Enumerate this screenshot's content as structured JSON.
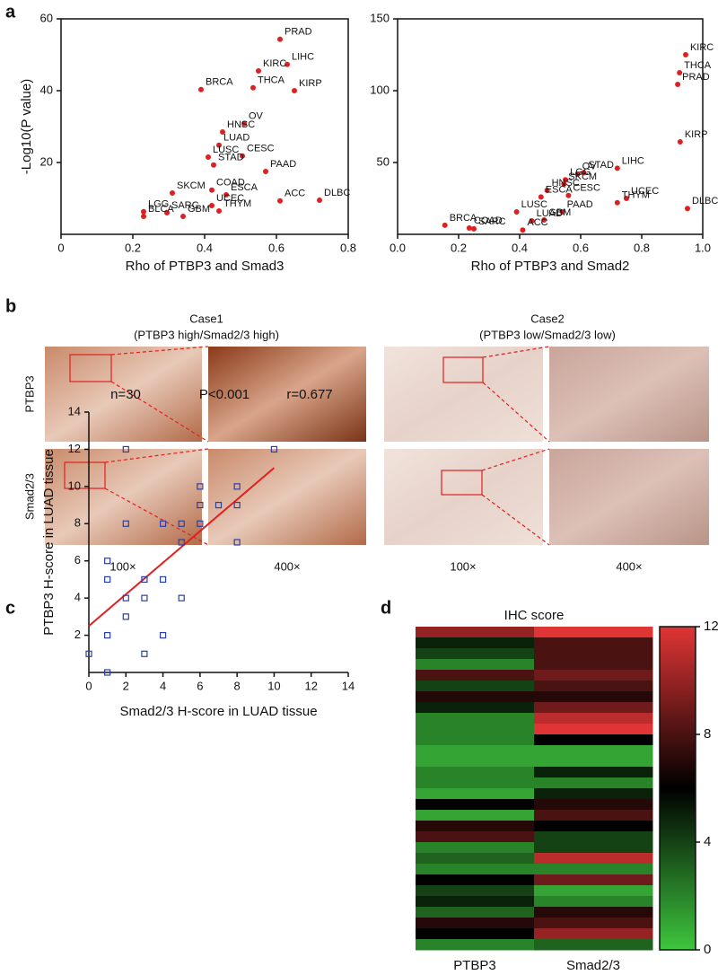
{
  "panel_labels": [
    "a",
    "b",
    "c",
    "d"
  ],
  "ihc_panel": {
    "row_labels": [
      "PTBP3",
      "Smad2/3"
    ],
    "cases": [
      {
        "title": "Case1",
        "subtitle": "(PTBP3 high/Smad2/3 high)",
        "magnifications": [
          "100×",
          "400×"
        ]
      },
      {
        "title": "Case2",
        "subtitle": "(PTBP3 low/Smad2/3 low)",
        "magnifications": [
          "100×",
          "400×"
        ]
      }
    ]
  },
  "chart_data": [
    {
      "type": "scatter",
      "xlabel": "Rho of  PTBP3 and Smad3",
      "ylabel": "-Log10(P value)",
      "color": "#e02020",
      "xlim": [
        0,
        0.8
      ],
      "xticks": [
        0,
        0.2,
        0.4,
        0.6,
        0.8
      ],
      "ylim": [
        0,
        60
      ],
      "yticks": [
        20,
        40,
        60
      ],
      "point_labels": [
        "PRAD",
        "LIHC",
        "KIRC",
        "KIRP",
        "BRCA",
        "THCA",
        "OV",
        "HNSC",
        "LUAD",
        "CESC",
        "LUSC",
        "STAD",
        "PAAD",
        "SKCM",
        "COAD",
        "ESCA",
        "LGG",
        "SARC",
        "UCEC",
        "ACC",
        "DLBC",
        "BLCA",
        "GBM",
        "THYM"
      ],
      "x": [
        0.61,
        0.63,
        0.55,
        0.65,
        0.39,
        0.535,
        0.51,
        0.45,
        0.44,
        0.505,
        0.41,
        0.425,
        0.57,
        0.31,
        0.42,
        0.46,
        0.23,
        0.295,
        0.42,
        0.61,
        0.72,
        0.23,
        0.34,
        0.44
      ],
      "values": [
        54.3,
        47.3,
        45.5,
        40,
        40.3,
        40.8,
        30.8,
        28.5,
        24.8,
        21.8,
        21.5,
        19.3,
        17.5,
        11.5,
        12.3,
        11,
        6.3,
        6,
        8,
        9.3,
        9.5,
        5,
        5,
        6.5
      ]
    },
    {
      "type": "scatter",
      "xlabel": "Rho of  PTBP3 and Smad2",
      "color": "#e02020",
      "xlim": [
        0,
        1
      ],
      "xticks": [
        {
          "value": 0,
          "label": "0.0"
        },
        0.2,
        0.4,
        0.6,
        0.8,
        {
          "value": 1,
          "label": "1.0"
        }
      ],
      "ylim": [
        0,
        150
      ],
      "yticks": [
        50,
        100,
        150
      ],
      "point_labels": [
        "KIRC",
        "THCA",
        "PRAD",
        "KIRP",
        "LIHC",
        "OV",
        "STAD",
        "LGG",
        "SKCM",
        "HNSC",
        "CESC",
        "UCEC",
        "THYM",
        "DLBC",
        "ESCA",
        "PAAD",
        "LUSC",
        "LUAD",
        "GBM",
        "ACC",
        "SARC",
        "COAD",
        "BRCA"
      ],
      "x": [
        0.944,
        0.924,
        0.918,
        0.926,
        0.72,
        0.59,
        0.61,
        0.55,
        0.545,
        0.49,
        0.56,
        0.75,
        0.72,
        0.95,
        0.47,
        0.54,
        0.39,
        0.44,
        0.48,
        0.41,
        0.25,
        0.235,
        0.155
      ],
      "values": [
        125,
        112.5,
        104.4,
        64.4,
        46,
        42,
        43,
        38,
        35,
        30.6,
        27,
        25,
        22,
        18,
        26,
        15.6,
        15.6,
        9.4,
        10,
        3,
        3.8,
        4.4,
        6.3
      ]
    },
    {
      "type": "scatter",
      "xlabel": "Smad2/3 H-score in LUAD tissue",
      "ylabel": "PTBP3 H-score in LUAD tissue",
      "annotations": [
        "n=30",
        "P<0.001",
        "r=0.677"
      ],
      "color": "#2a3fa8",
      "xlim": [
        0,
        14
      ],
      "xticks": [
        0,
        2,
        4,
        6,
        8,
        10,
        12,
        14
      ],
      "ylim": [
        0,
        14
      ],
      "yticks": [
        2,
        4,
        6,
        8,
        10,
        12,
        14
      ],
      "x": [
        0,
        1,
        1,
        1,
        1,
        2,
        2,
        2,
        2,
        3,
        3,
        3,
        4,
        4,
        4,
        5,
        5,
        5,
        6,
        6,
        6,
        7,
        8,
        8,
        8,
        10
      ],
      "values": [
        1,
        0,
        2,
        5,
        6,
        12,
        8,
        4,
        3,
        5,
        4,
        1,
        8,
        5,
        2,
        8,
        7,
        4,
        10,
        9,
        8,
        9,
        10,
        9,
        7,
        12
      ],
      "fit": {
        "color": "#e02020",
        "x": [
          0,
          10
        ],
        "values": [
          2.5,
          11
        ]
      }
    },
    {
      "type": "heatmap",
      "title": "IHC score",
      "clim": [
        0,
        12
      ],
      "cticks": [
        0,
        4,
        8,
        12
      ],
      "colors": [
        "#3ec63e",
        "#000000",
        "#e03535"
      ],
      "series": [
        {
          "name": "PTBP3",
          "values": [
            10,
            5,
            4,
            2,
            8,
            4,
            7,
            5,
            2,
            2,
            2,
            1,
            1,
            2,
            2,
            1,
            6,
            1,
            7,
            8,
            2,
            3,
            2,
            6,
            4,
            5,
            3,
            7,
            6,
            2
          ]
        },
        {
          "name": "Smad2/3",
          "values": [
            12,
            8,
            8,
            8,
            9,
            8,
            7,
            9,
            11,
            12,
            6,
            1,
            1,
            5,
            2,
            5,
            7,
            8,
            6,
            4,
            4,
            11,
            2,
            9,
            1,
            2,
            7,
            8,
            10,
            3
          ]
        }
      ]
    }
  ]
}
